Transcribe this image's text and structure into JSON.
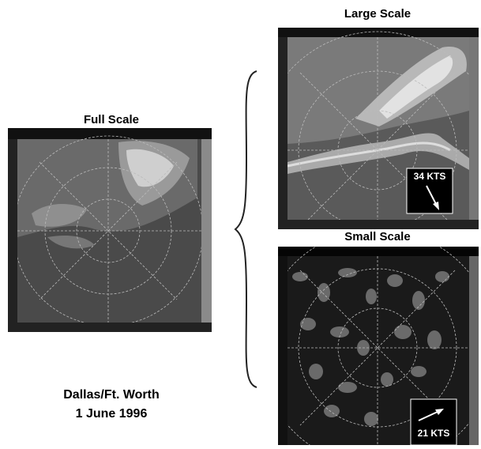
{
  "full_scale": {
    "title": "Full Scale"
  },
  "large_scale": {
    "title": "Large Scale",
    "wind_label": "34 KTS"
  },
  "small_scale": {
    "title": "Small Scale",
    "wind_label": "21 KTS"
  },
  "caption": {
    "location": "Dallas/Ft. Worth",
    "date": "1 June 1996"
  }
}
